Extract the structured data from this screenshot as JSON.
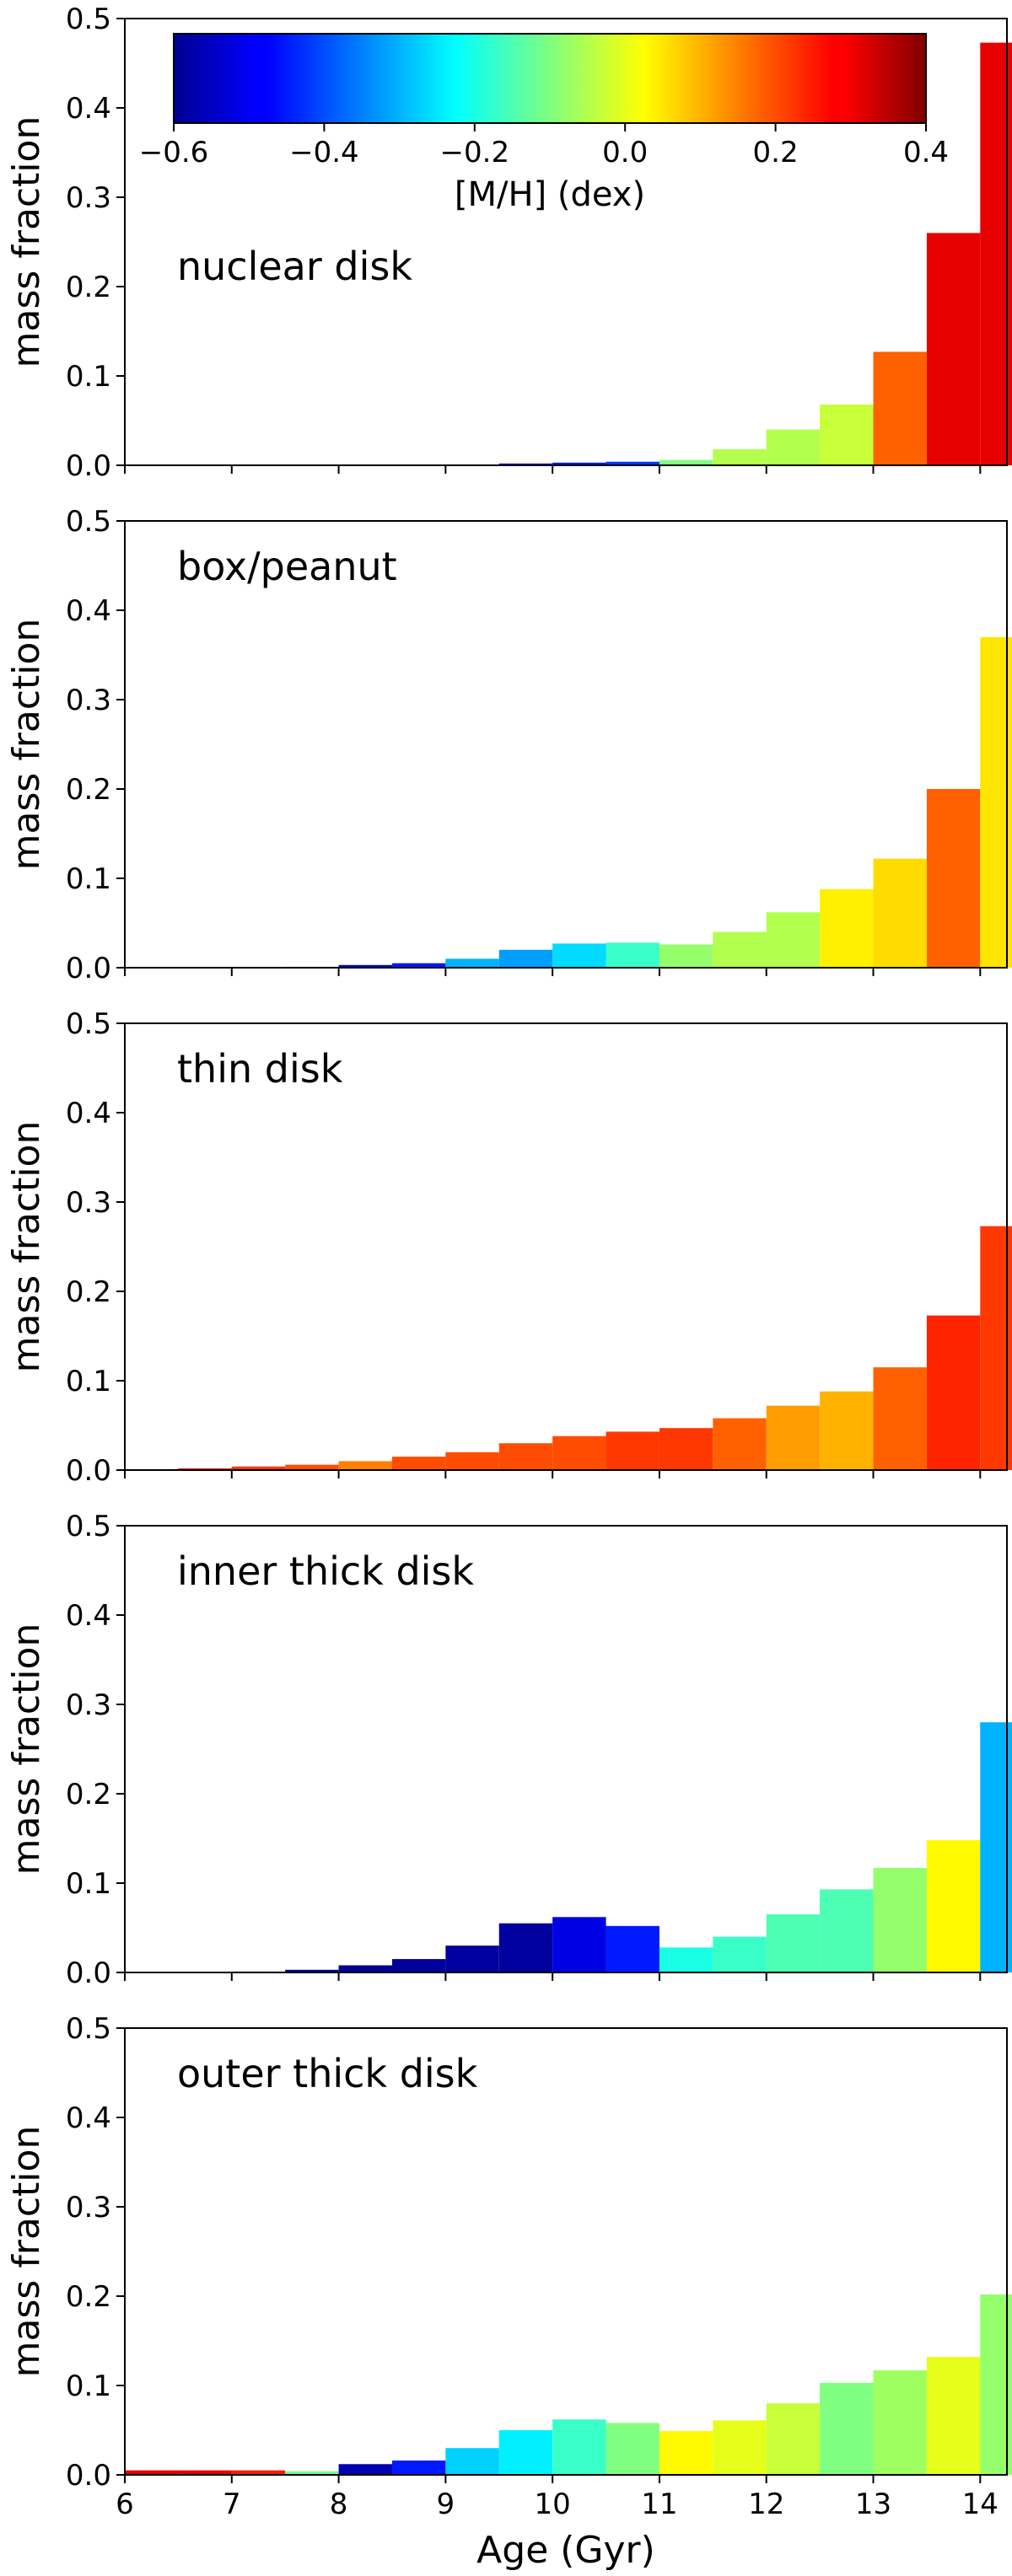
{
  "chart_data": {
    "type": "bar",
    "layout": "5 stacked panels sharing x axis",
    "xlabel": "Age (Gyr)",
    "ylabel": "mass fraction",
    "xlim": [
      6,
      14.25
    ],
    "ylim": [
      0,
      0.5
    ],
    "xticks": [
      6,
      7,
      8,
      9,
      10,
      11,
      12,
      13,
      14
    ],
    "yticks": [
      "0.0",
      "0.1",
      "0.2",
      "0.3",
      "0.4",
      "0.5"
    ],
    "bin_edges": [
      6.0,
      6.5,
      7.0,
      7.5,
      8.0,
      8.5,
      9.0,
      9.5,
      10.0,
      10.5,
      11.0,
      11.5,
      12.0,
      12.5,
      13.0,
      13.5,
      14.0
    ],
    "colorbar": {
      "label": "[M/H] (dex)",
      "colormap": "jet",
      "range": [
        -0.6,
        0.4
      ],
      "ticks": [
        "−0.6",
        "−0.4",
        "−0.2",
        "0.0",
        "0.2",
        "0.4"
      ],
      "placement": "top inside first panel"
    },
    "panels": [
      {
        "name": "nuclear disk",
        "values": [
          0.0,
          0.0,
          0.0,
          0.0,
          0.0,
          0.0,
          0.0,
          0.002,
          0.003,
          0.004,
          0.006,
          0.018,
          0.04,
          0.068,
          0.127,
          0.26,
          0.473
        ],
        "metallicity": [
          -0.5,
          -0.5,
          -0.5,
          -0.5,
          -0.5,
          -0.5,
          -0.5,
          -0.48,
          -0.45,
          -0.42,
          -0.1,
          -0.05,
          -0.05,
          -0.03,
          0.18,
          0.3,
          0.3
        ]
      },
      {
        "name": "box/peanut",
        "values": [
          0.0,
          0.0,
          0.0,
          0.001,
          0.003,
          0.005,
          0.01,
          0.02,
          0.027,
          0.028,
          0.026,
          0.04,
          0.062,
          0.088,
          0.122,
          0.2,
          0.37
        ],
        "metallicity": [
          -0.55,
          -0.55,
          -0.55,
          -0.55,
          -0.52,
          -0.45,
          -0.3,
          -0.32,
          -0.26,
          -0.17,
          -0.08,
          -0.05,
          -0.05,
          0.04,
          0.06,
          0.18,
          0.05
        ]
      },
      {
        "name": "thin disk",
        "values": [
          0.001,
          0.002,
          0.004,
          0.006,
          0.01,
          0.015,
          0.02,
          0.03,
          0.038,
          0.043,
          0.047,
          0.058,
          0.072,
          0.088,
          0.115,
          0.173,
          0.273
        ],
        "metallicity": [
          0.25,
          0.24,
          0.22,
          0.2,
          0.15,
          0.2,
          0.2,
          0.2,
          0.2,
          0.22,
          0.22,
          0.18,
          0.12,
          0.1,
          0.18,
          0.24,
          0.22
        ]
      },
      {
        "name": "inner thick disk",
        "values": [
          0.0,
          0.0,
          0.001,
          0.003,
          0.008,
          0.015,
          0.03,
          0.055,
          0.062,
          0.052,
          0.028,
          0.04,
          0.065,
          0.093,
          0.117,
          0.148,
          0.28
        ],
        "metallicity": [
          -0.6,
          -0.6,
          -0.6,
          -0.58,
          -0.58,
          -0.57,
          -0.57,
          -0.57,
          -0.5,
          -0.45,
          -0.2,
          -0.17,
          -0.15,
          -0.15,
          -0.08,
          0.03,
          -0.3
        ]
      },
      {
        "name": "outer thick disk",
        "values": [
          0.005,
          0.005,
          0.005,
          0.004,
          0.012,
          0.016,
          0.03,
          0.05,
          0.062,
          0.058,
          0.049,
          0.061,
          0.08,
          0.103,
          0.117,
          0.132,
          0.202
        ],
        "metallicity": [
          0.3,
          0.3,
          0.25,
          -0.12,
          -0.55,
          -0.45,
          -0.27,
          -0.24,
          -0.17,
          -0.1,
          0.03,
          0.0,
          -0.03,
          -0.1,
          -0.07,
          0.0,
          -0.08
        ]
      }
    ]
  }
}
